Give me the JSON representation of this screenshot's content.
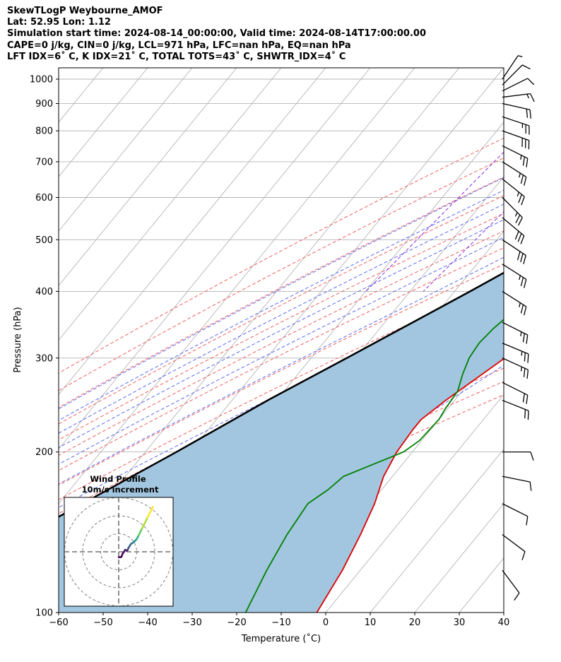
{
  "header": {
    "line1": "SkewTLogP Weybourne_AMOF",
    "line2": "Lat: 52.95   Lon: 1.12",
    "line3": "Simulation start time: 2024-08-14_00:00:00, Valid time: 2024-08-14T17:00:00.00",
    "line4": "CAPE=0 j/kg, CIN=0 j/kg, LCL=971 hPa, LFC=nan hPa, EQ=nan hPa",
    "line5": "LFT IDX=6˚ C, K IDX=21˚ C, TOTAL TOTS=43˚ C, SHWTR_IDX=4˚ C"
  },
  "chart_data": {
    "type": "line",
    "title": "SkewTLogP Weybourne_AMOF",
    "xlabel": "Temperature (˚C)",
    "ylabel": "Pressure (hPa)",
    "xlim": [
      -60,
      40
    ],
    "ylim": [
      1050,
      100
    ],
    "y_scale": "log",
    "grid": true,
    "x_ticks": [
      -60,
      -50,
      -40,
      -30,
      -20,
      -10,
      0,
      10,
      20,
      30,
      40
    ],
    "y_ticks": [
      1000,
      900,
      800,
      700,
      600,
      500,
      400,
      300,
      200,
      100
    ],
    "colors": {
      "temperature": "#e00000",
      "dewpoint": "#008000",
      "parcel": "#000000",
      "cape_fill": "#a2c6df",
      "dry_adiabats": "#f06060",
      "moist_adiabats": "#5a6af0",
      "mixing_ratio": "#8a2be2",
      "isotherms": "#b4b4b4",
      "wind_barbs": "#000000"
    },
    "series": [
      {
        "name": "Temperature",
        "pressure": [
          1000,
          990,
          975,
          950,
          925,
          900,
          850,
          800,
          700,
          650,
          600,
          550,
          500,
          450,
          400,
          350,
          300,
          250,
          230,
          220,
          200,
          180,
          160,
          140,
          120,
          100
        ],
        "temperature": [
          16.5,
          17.5,
          18.5,
          18,
          17,
          16.5,
          15.5,
          14.5,
          13,
          13.8,
          13,
          11.5,
          8,
          4.5,
          1,
          -2.5,
          -6.5,
          -12,
          -14,
          -14,
          -13.5,
          -12,
          -9,
          -6.5,
          -4,
          -2
        ]
      },
      {
        "name": "Dewpoint",
        "pressure": [
          1010,
          1000,
          980,
          950,
          925,
          900,
          870,
          850,
          800,
          750,
          700,
          680,
          650,
          630,
          600,
          560,
          540,
          500,
          480,
          460,
          450,
          420,
          400,
          360,
          340,
          320,
          300,
          280,
          260,
          240,
          230,
          210,
          200,
          180,
          170,
          160,
          140,
          120,
          100
        ],
        "temperature": [
          14.5,
          14.8,
          14,
          12,
          11.5,
          12.3,
          13.5,
          14.2,
          11,
          7.5,
          0,
          -6.5,
          -12.5,
          -18,
          -18,
          -13,
          -12,
          -14,
          -15.5,
          -14.5,
          -12.5,
          -10,
          -9,
          -13.5,
          -14.5,
          -15,
          -14.5,
          -13,
          -11,
          -10.5,
          -10,
          -10.5,
          -12,
          -21,
          -22,
          -24,
          -23,
          -21,
          -18
        ]
      },
      {
        "name": "Parcel",
        "pressure": [
          1010,
          1000,
          971,
          950,
          900,
          850,
          800,
          700,
          600,
          500,
          400,
          300,
          250,
          200,
          150,
          100
        ],
        "temperature": [
          15.5,
          15,
          14,
          13.5,
          11.5,
          9.5,
          7,
          1,
          -6,
          -15,
          -26.5,
          -42,
          -52,
          -63,
          -78,
          -98
        ]
      }
    ],
    "isotherm_temps": [
      -150,
      -140,
      -130,
      -120,
      -110,
      -100,
      -90,
      -80,
      -70,
      -60,
      -50,
      -40,
      -30,
      -20,
      -10,
      0,
      10,
      20,
      30,
      40
    ],
    "dry_adiabat_thetas": [
      -30,
      -20,
      -10,
      0,
      10,
      20,
      30,
      40,
      50,
      60,
      70,
      80,
      90,
      100,
      110,
      120,
      130
    ],
    "moist_adiabat_temps": [
      -10,
      -5,
      0,
      5,
      10,
      15,
      20,
      25,
      30,
      35
    ],
    "mixing_ratio_lines": [
      0.1,
      0.4
    ],
    "wind_barbs": {
      "pressure": [
        1000,
        975,
        950,
        925,
        900,
        850,
        800,
        750,
        700,
        650,
        600,
        550,
        500,
        450,
        400,
        350,
        320,
        300,
        270,
        250,
        200,
        180,
        160,
        140,
        120
      ],
      "u": [
        -2,
        -3,
        -4,
        -8,
        -9,
        -12,
        -14,
        -12,
        -11,
        -10,
        -9,
        -12,
        -12,
        -11,
        -11,
        -12,
        -12,
        -11,
        -10,
        -10,
        -5,
        -5,
        -4,
        -4,
        -3
      ],
      "v": [
        -3,
        -3,
        -2,
        -1,
        2,
        4,
        5,
        6,
        7,
        8,
        9,
        10,
        8,
        7,
        7,
        6,
        5,
        5,
        5,
        4,
        0,
        1,
        2,
        3,
        4
      ]
    },
    "inset": {
      "title": "Wind Profile",
      "subtitle": "10m/s increment",
      "rings_ms": [
        10,
        20,
        30
      ],
      "trace_u": [
        0,
        0.5,
        1,
        1.5,
        2,
        2.5,
        3,
        3.5,
        4,
        4.5,
        5,
        5.2,
        5.3,
        6,
        6.5,
        7,
        7.8,
        8.5,
        9,
        9.5,
        10,
        10.5,
        11,
        11.5,
        12,
        13,
        14,
        15,
        16,
        17,
        18,
        19
      ],
      "trace_v": [
        -3,
        -3,
        -3,
        -2.8,
        -1.5,
        -0.5,
        0,
        1,
        1,
        0.5,
        1,
        1.5,
        2,
        3,
        4,
        4.5,
        5,
        5.5,
        6,
        6.5,
        7,
        8,
        9,
        10,
        11,
        13,
        15,
        17,
        19,
        21,
        23,
        25
      ]
    }
  }
}
